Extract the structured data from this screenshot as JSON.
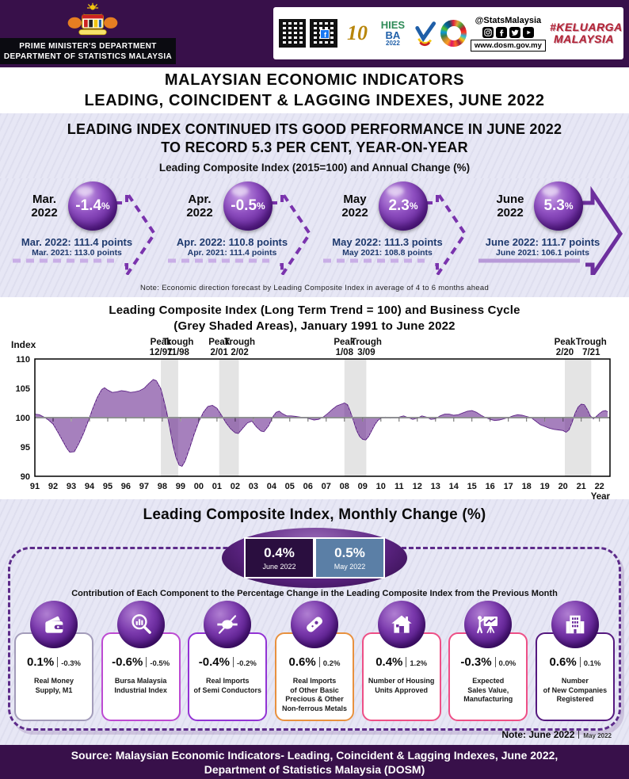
{
  "header": {
    "dept_line1": "PRIME MINISTER'S  DEPARTMENT",
    "dept_line2": "DEPARTMENT  OF  STATISTICS  MALAYSIA",
    "banner": {
      "anniversary": "10",
      "hies_line1": "HIES",
      "hies_line2": "BA",
      "hies_year": "2022",
      "handle": "@StatsMalaysia",
      "website": "www.dosm.gov.my",
      "hashtag_line1": "#KELUARGA",
      "hashtag_line2": "MALAYSIA"
    }
  },
  "title": {
    "line1": "MALAYSIAN ECONOMIC INDICATORS",
    "line2": "LEADING, COINCIDENT & LAGGING INDEXES,  JUNE 2022"
  },
  "headline": {
    "line1": "LEADING INDEX CONTINUED ITS GOOD PERFORMANCE IN JUNE 2022",
    "line2": "TO RECORD 5.3 PER CENT, YEAR-ON-YEAR",
    "subtitle": "Leading Composite Index (2015=100)  and Annual Change (%)"
  },
  "annual_change": {
    "pct_sign": "%",
    "items": [
      {
        "month_line1": "Mar.",
        "month_line2": "2022",
        "pct": "-1.4",
        "current": "Mar. 2022: 111.4 points",
        "previous": "Mar.  2021:  113.0  points",
        "arrow": "dashed"
      },
      {
        "month_line1": "Apr.",
        "month_line2": "2022",
        "pct": "-0.5",
        "current": "Apr. 2022: 110.8 points",
        "previous": "Apr.  2021:  111.4  points",
        "arrow": "dashed"
      },
      {
        "month_line1": "May",
        "month_line2": "2022",
        "pct": "2.3",
        "current": "May 2022: 111.3 points",
        "previous": "May  2021:  108.8  points",
        "arrow": "dashed"
      },
      {
        "month_line1": "June",
        "month_line2": "2022",
        "pct": "5.3",
        "current": "June 2022: 111.7 points",
        "previous": "June  2021:  106.1  points",
        "arrow": "solid"
      }
    ],
    "note": "Note: Economic  direction forecast by Leading  Composite  Index in average of 4 to 6 months  ahead"
  },
  "chart": {
    "title_line1": "Leading Composite  Index (Long Term Trend = 100)  and Business  Cycle",
    "title_line2": "(Grey  Shaded  Areas),  January 1991 to  June 2022"
  },
  "chart_data": {
    "type": "area",
    "title": "Leading Composite Index (Long Term Trend = 100) and Business Cycle (Grey Shaded Areas), January 1991 to June 2022",
    "ylabel": "Index",
    "xlabel": "Year",
    "ylim": [
      90,
      110
    ],
    "yticks": [
      110,
      105,
      100,
      95,
      90
    ],
    "baseline": 100,
    "xticks": [
      "91",
      "92",
      "93",
      "94",
      "95",
      "96",
      "97",
      "98",
      "99",
      "00",
      "01",
      "02",
      "03",
      "04",
      "05",
      "06",
      "07",
      "08",
      "09",
      "10",
      "11",
      "12",
      "13",
      "14",
      "15",
      "16",
      "17",
      "18",
      "19",
      "20",
      "21",
      "22"
    ],
    "x_range": [
      1991.0,
      2022.58
    ],
    "grid": false,
    "legend": "none",
    "series": [
      {
        "name": "Leading Composite Index, ratio to long term trend",
        "points": [
          [
            1991.0,
            100.6
          ],
          [
            1991.25,
            100.5
          ],
          [
            1991.5,
            100.1
          ],
          [
            1991.75,
            99.6
          ],
          [
            1992.0,
            98.9
          ],
          [
            1992.25,
            97.6
          ],
          [
            1992.5,
            96.2
          ],
          [
            1992.75,
            94.8
          ],
          [
            1992.92,
            94.1
          ],
          [
            1993.17,
            94.2
          ],
          [
            1993.42,
            95.6
          ],
          [
            1993.67,
            97.3
          ],
          [
            1993.92,
            99.3
          ],
          [
            1994.17,
            101.5
          ],
          [
            1994.42,
            103.4
          ],
          [
            1994.67,
            104.8
          ],
          [
            1994.83,
            105.1
          ],
          [
            1995.0,
            104.7
          ],
          [
            1995.25,
            104.3
          ],
          [
            1995.5,
            104.4
          ],
          [
            1995.75,
            104.6
          ],
          [
            1996.0,
            104.5
          ],
          [
            1996.25,
            104.3
          ],
          [
            1996.5,
            104.4
          ],
          [
            1996.75,
            104.6
          ],
          [
            1997.0,
            105.0
          ],
          [
            1997.25,
            105.8
          ],
          [
            1997.5,
            106.5
          ],
          [
            1997.67,
            106.3
          ],
          [
            1997.92,
            104.9
          ],
          [
            1998.08,
            103.0
          ],
          [
            1998.25,
            100.8
          ],
          [
            1998.42,
            98.0
          ],
          [
            1998.58,
            95.3
          ],
          [
            1998.75,
            93.2
          ],
          [
            1998.92,
            91.9
          ],
          [
            1999.08,
            91.7
          ],
          [
            1999.25,
            92.6
          ],
          [
            1999.5,
            94.8
          ],
          [
            1999.75,
            97.2
          ],
          [
            2000.0,
            99.3
          ],
          [
            2000.25,
            100.9
          ],
          [
            2000.5,
            101.9
          ],
          [
            2000.75,
            102.1
          ],
          [
            2001.0,
            101.6
          ],
          [
            2001.25,
            100.4
          ],
          [
            2001.5,
            99.1
          ],
          [
            2001.75,
            98.1
          ],
          [
            2002.0,
            97.4
          ],
          [
            2002.17,
            97.3
          ],
          [
            2002.42,
            98.2
          ],
          [
            2002.67,
            99.1
          ],
          [
            2002.92,
            99.4
          ],
          [
            2003.17,
            98.4
          ],
          [
            2003.42,
            97.7
          ],
          [
            2003.58,
            97.6
          ],
          [
            2003.83,
            98.6
          ],
          [
            2004.08,
            100.2
          ],
          [
            2004.25,
            100.9
          ],
          [
            2004.42,
            101.1
          ],
          [
            2004.58,
            100.7
          ],
          [
            2004.83,
            100.3
          ],
          [
            2005.08,
            100.3
          ],
          [
            2005.33,
            100.2
          ],
          [
            2005.58,
            100.1
          ],
          [
            2005.83,
            100.0
          ],
          [
            2006.08,
            99.8
          ],
          [
            2006.33,
            99.6
          ],
          [
            2006.58,
            99.7
          ],
          [
            2006.83,
            100.1
          ],
          [
            2007.08,
            100.7
          ],
          [
            2007.33,
            101.4
          ],
          [
            2007.58,
            102.0
          ],
          [
            2007.83,
            102.3
          ],
          [
            2008.0,
            102.5
          ],
          [
            2008.17,
            102.2
          ],
          [
            2008.33,
            101.0
          ],
          [
            2008.5,
            99.4
          ],
          [
            2008.67,
            97.8
          ],
          [
            2008.83,
            96.8
          ],
          [
            2009.0,
            96.3
          ],
          [
            2009.17,
            96.2
          ],
          [
            2009.33,
            96.8
          ],
          [
            2009.5,
            97.8
          ],
          [
            2009.67,
            98.8
          ],
          [
            2009.83,
            99.5
          ],
          [
            2010.0,
            99.9
          ],
          [
            2010.25,
            100.1
          ],
          [
            2010.5,
            99.9
          ],
          [
            2010.75,
            100.0
          ],
          [
            2011.0,
            100.1
          ],
          [
            2011.25,
            100.3
          ],
          [
            2011.5,
            100.0
          ],
          [
            2011.75,
            99.7
          ],
          [
            2012.0,
            99.9
          ],
          [
            2012.25,
            100.3
          ],
          [
            2012.5,
            100.1
          ],
          [
            2012.75,
            99.7
          ],
          [
            2013.0,
            99.8
          ],
          [
            2013.25,
            100.3
          ],
          [
            2013.5,
            100.6
          ],
          [
            2013.75,
            100.6
          ],
          [
            2014.0,
            100.4
          ],
          [
            2014.25,
            100.5
          ],
          [
            2014.5,
            100.8
          ],
          [
            2014.75,
            101.1
          ],
          [
            2015.0,
            101.2
          ],
          [
            2015.25,
            100.9
          ],
          [
            2015.5,
            100.4
          ],
          [
            2015.75,
            100.0
          ],
          [
            2016.0,
            99.7
          ],
          [
            2016.25,
            99.5
          ],
          [
            2016.5,
            99.6
          ],
          [
            2016.75,
            99.8
          ],
          [
            2017.0,
            100.0
          ],
          [
            2017.25,
            100.3
          ],
          [
            2017.5,
            100.5
          ],
          [
            2017.75,
            100.4
          ],
          [
            2018.0,
            100.2
          ],
          [
            2018.25,
            100.0
          ],
          [
            2018.5,
            99.4
          ],
          [
            2018.75,
            98.8
          ],
          [
            2019.0,
            98.5
          ],
          [
            2019.25,
            98.2
          ],
          [
            2019.5,
            98.0
          ],
          [
            2019.75,
            97.9
          ],
          [
            2020.0,
            97.8
          ],
          [
            2020.17,
            97.5
          ],
          [
            2020.33,
            97.9
          ],
          [
            2020.5,
            99.2
          ],
          [
            2020.67,
            100.8
          ],
          [
            2020.83,
            101.8
          ],
          [
            2021.0,
            102.3
          ],
          [
            2021.17,
            102.2
          ],
          [
            2021.33,
            101.4
          ],
          [
            2021.5,
            100.3
          ],
          [
            2021.67,
            99.8
          ],
          [
            2021.83,
            100.2
          ],
          [
            2022.0,
            100.7
          ],
          [
            2022.17,
            101.1
          ],
          [
            2022.33,
            101.2
          ],
          [
            2022.46,
            101.0
          ]
        ]
      }
    ],
    "recession_bands": [
      {
        "start": 1997.92,
        "end": 1998.87
      },
      {
        "start": 2001.12,
        "end": 2002.2
      },
      {
        "start": 2008.0,
        "end": 2009.2
      },
      {
        "start": 2020.1,
        "end": 2021.55
      }
    ],
    "turning_points": [
      {
        "type": "Peak",
        "date": "12/97",
        "x": 1997.92
      },
      {
        "type": "Trough",
        "date": "11/98",
        "x": 1998.87
      },
      {
        "type": "Peak",
        "date": "2/01",
        "x": 2001.12
      },
      {
        "type": "Trough",
        "date": "2/02",
        "x": 2002.25
      },
      {
        "type": "Peak",
        "date": "1/08",
        "x": 2008.0
      },
      {
        "type": "Trough",
        "date": "3/09",
        "x": 2009.2
      },
      {
        "type": "Peak",
        "date": "2/20",
        "x": 2020.1
      },
      {
        "type": "Trough",
        "date": "7/21",
        "x": 2021.55
      }
    ]
  },
  "monthly_change": {
    "heading": "Leading Composite Index, Monthly Change (%)",
    "current": {
      "value": "0.4%",
      "label": "June  2022"
    },
    "previous": {
      "value": "0.5%",
      "label": "May 2022"
    },
    "contribution_heading": "Contribution of Each Component  to the Percentage Change in the Leading Composite  Index from the Previous Month",
    "components": [
      {
        "value": "0.1%",
        "prev": "-0.3%",
        "name": "Real Money\nSupply,  M1",
        "icon": "wallet-icon",
        "border": "#a39cba"
      },
      {
        "value": "-0.6%",
        "prev": "-0.5%",
        "name": "Bursa  Malaysia\nIndustrial  Index",
        "icon": "magnifier-chart-icon",
        "border": "#bd4ad2"
      },
      {
        "value": "-0.4%",
        "prev": "-0.2%",
        "name": "Real Imports\nof Semi  Conductors",
        "icon": "semiconductor-icon",
        "border": "#9233d4"
      },
      {
        "value": "0.6%",
        "prev": "0.2%",
        "name": "Real Imports\nof Other Basic\nPrecious & Other\nNon-ferrous Metals",
        "icon": "metal-ingot-icon",
        "border": "#e8913f"
      },
      {
        "value": "0.4%",
        "prev": "1.2%",
        "name": "Number  of Housing\nUnits Approved",
        "icon": "house-icon",
        "border": "#ee4f86"
      },
      {
        "value": "-0.3%",
        "prev": "0.0%",
        "name": "Expected\nSales Value,\nManufacturing",
        "icon": "presentation-icon",
        "border": "#ee4f86"
      },
      {
        "value": "0.6%",
        "prev": "0.1%",
        "name": "Number\nof New Companies\nRegistered",
        "icon": "building-icon",
        "border": "#55187f"
      }
    ],
    "note_current": "Note: June 2022",
    "note_previous": "May 2022"
  },
  "footer": {
    "line1": "Source: Malaysian Economic Indicators- Leading, Coincident & Lagging Indexes, June 2022,",
    "line2": "Department of Statistics Malaysia (DOSM)"
  }
}
